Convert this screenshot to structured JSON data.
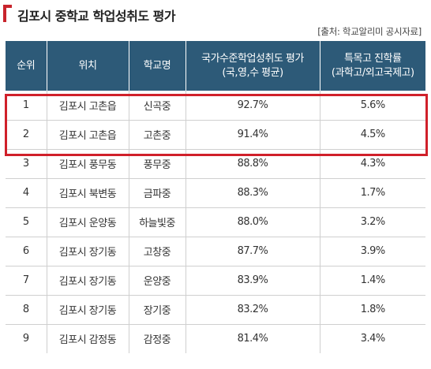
{
  "title": "김포시 중학교 학업성취도 평가",
  "source": "[출처: 학교알리미 공시자료]",
  "header": {
    "rank": "순위",
    "location": "위치",
    "school": "학교명",
    "achievement_line1": "국가수준학업성취도 평가",
    "achievement_line2": "(국,영,수 평균)",
    "admission_line1": "특목고 진학률",
    "admission_line2": "(과학고/외고국제고)"
  },
  "rows": [
    {
      "rank": "1",
      "location": "김포시 고촌읍",
      "school": "신곡중",
      "achievement": "92.7%",
      "admission": "5.6%"
    },
    {
      "rank": "2",
      "location": "김포시 고촌읍",
      "school": "고촌중",
      "achievement": "91.4%",
      "admission": "4.5%"
    },
    {
      "rank": "3",
      "location": "김포시 풍무동",
      "school": "풍무중",
      "achievement": "88.8%",
      "admission": "4.3%"
    },
    {
      "rank": "4",
      "location": "김포시 북변동",
      "school": "금파중",
      "achievement": "88.3%",
      "admission": "1.7%"
    },
    {
      "rank": "5",
      "location": "김포시 운양동",
      "school": "하늘빛중",
      "achievement": "88.0%",
      "admission": "3.2%"
    },
    {
      "rank": "6",
      "location": "김포시 장기동",
      "school": "고창중",
      "achievement": "87.7%",
      "admission": "3.9%"
    },
    {
      "rank": "7",
      "location": "김포시 장기동",
      "school": "운양중",
      "achievement": "83.9%",
      "admission": "1.4%"
    },
    {
      "rank": "8",
      "location": "김포시 장기동",
      "school": "장기중",
      "achievement": "83.2%",
      "admission": "1.8%"
    },
    {
      "rank": "9",
      "location": "김포시 감정동",
      "school": "감정중",
      "achievement": "81.4%",
      "admission": "3.4%"
    }
  ],
  "colors": {
    "header_bg": "#2d5a78",
    "highlight": "#d0202a",
    "accent": "#c8242c"
  }
}
